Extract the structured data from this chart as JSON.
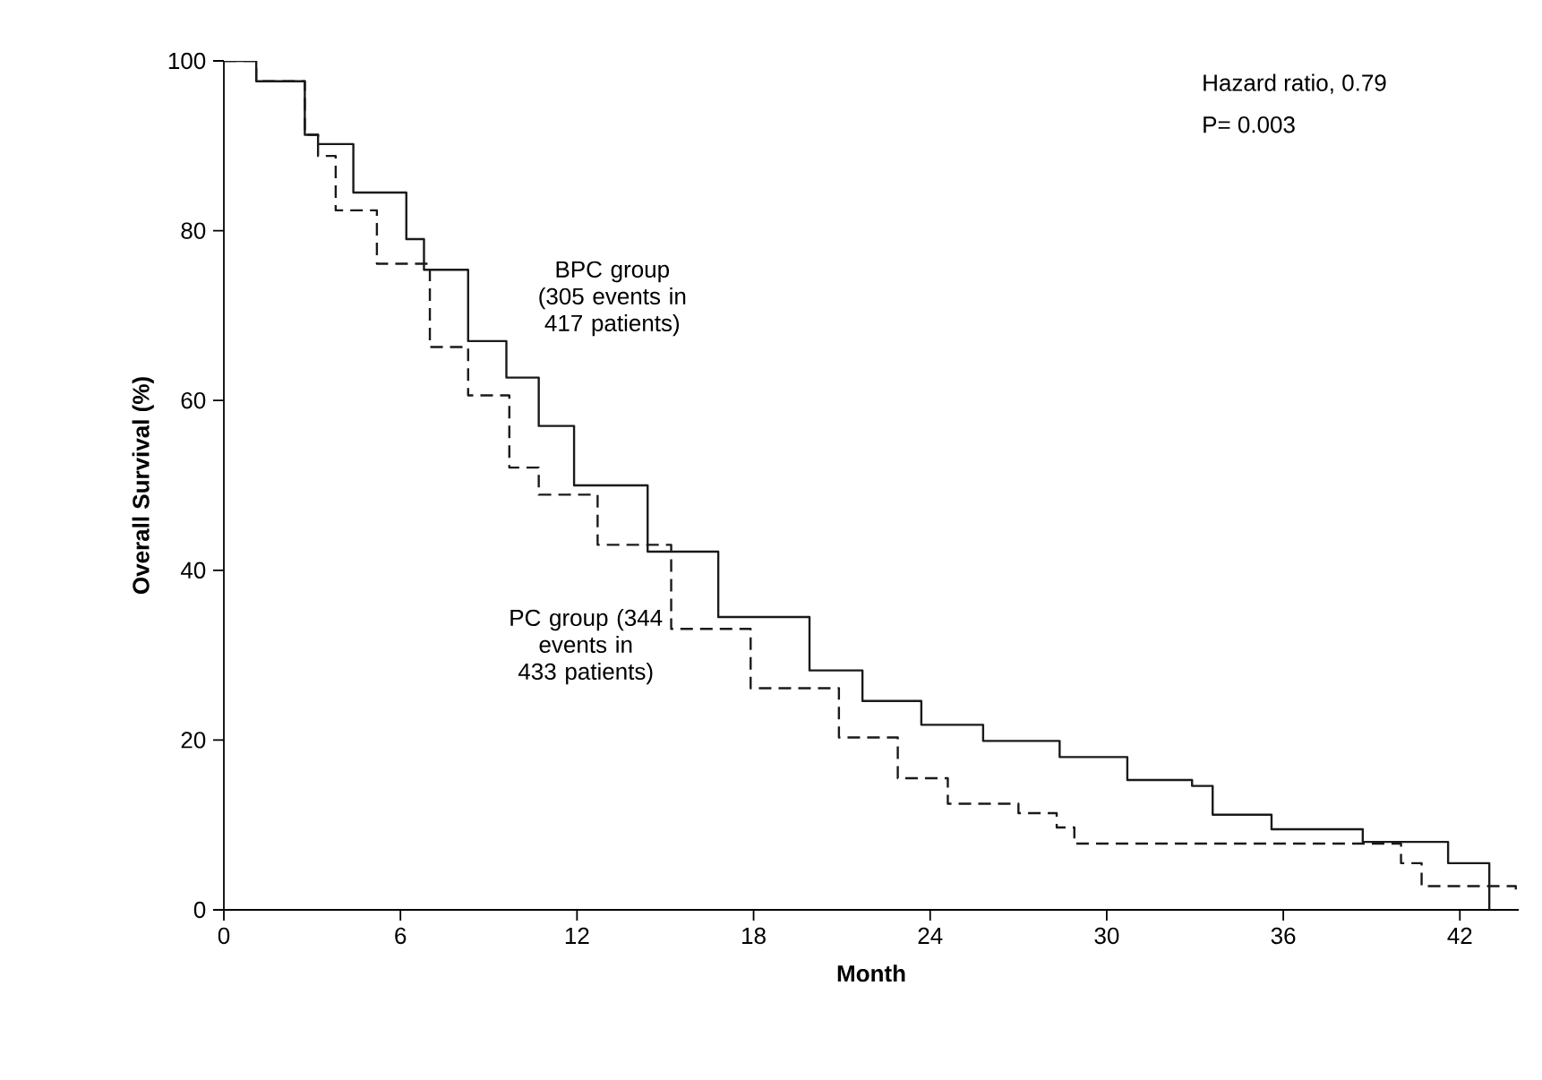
{
  "chart_data": {
    "type": "step",
    "xlabel": "Month",
    "ylabel": "Overall Survival (%)",
    "xlim": [
      0,
      44
    ],
    "ylim": [
      0,
      100
    ],
    "xticks": [
      0,
      6,
      12,
      18,
      24,
      30,
      36,
      42
    ],
    "yticks": [
      0,
      20,
      40,
      60,
      80,
      100
    ],
    "grid": false,
    "legend": false,
    "marker": "none",
    "annotations": [
      "Hazard ratio, 0.79",
      "P= 0.003"
    ],
    "series": [
      {
        "name": "BPC group (305 events in 417 patients)",
        "color": "#1a1a1a",
        "line_style": "solid",
        "x": [
          0,
          1.1,
          2.75,
          3.2,
          4.4,
          6.2,
          6.8,
          8.3,
          9.6,
          10.7,
          11.9,
          14.4,
          16.8,
          19.9,
          21.7,
          23.7,
          25.8,
          28.4,
          30.7,
          32.9,
          33.6,
          35.6,
          38.7,
          41.6,
          43.0
        ],
        "values": [
          100,
          97.6,
          91.3,
          90.2,
          84.5,
          79.0,
          75.4,
          67.0,
          62.7,
          57.0,
          50.0,
          42.2,
          34.5,
          28.2,
          24.6,
          21.8,
          19.9,
          18.0,
          15.3,
          14.6,
          11.2,
          9.5,
          8.0,
          5.5,
          0
        ]
      },
      {
        "name": "PC group (344 events in 433 patients)",
        "color": "#1a1a1a",
        "line_style": "dashed",
        "x": [
          0,
          1.1,
          2.75,
          3.2,
          3.8,
          5.2,
          7.0,
          8.3,
          9.7,
          10.7,
          12.7,
          15.2,
          17.9,
          20.9,
          22.9,
          24.6,
          27.0,
          28.3,
          28.9,
          40.0,
          40.7,
          43.9
        ],
        "values": [
          100,
          97.6,
          91.3,
          88.8,
          82.4,
          76.1,
          66.3,
          60.6,
          52.1,
          48.9,
          43.0,
          33.1,
          26.1,
          20.3,
          15.5,
          12.5,
          11.4,
          9.7,
          7.8,
          5.5,
          2.8,
          2.1
        ]
      }
    ]
  }
}
